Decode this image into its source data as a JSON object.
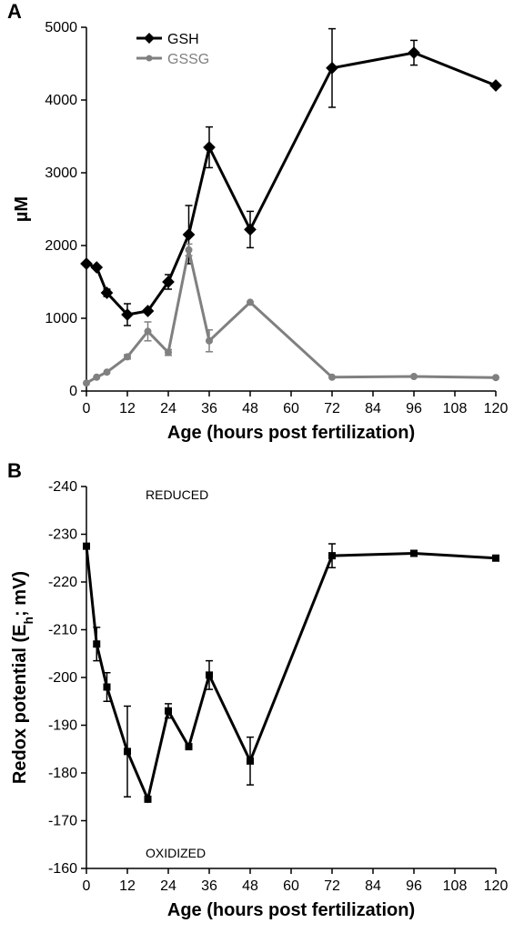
{
  "panelA": {
    "label": "A",
    "label_fontsize": 22,
    "type": "line",
    "xlabel": "Age (hours post fertilization)",
    "ylabel": "µM",
    "label_fontsize_axis": 20,
    "tick_fontsize": 16,
    "xlim": [
      0,
      120
    ],
    "ylim": [
      0,
      5000
    ],
    "xtick_step": 12,
    "ytick_step": 1000,
    "background_color": "#ffffff",
    "axis_color": "#000000",
    "legend": {
      "position": "top-inside",
      "fontsize": 16
    },
    "series": [
      {
        "name": "GSH",
        "color": "#000000",
        "marker": "diamond",
        "marker_size": 8,
        "line_width": 3,
        "x": [
          0,
          3,
          6,
          12,
          18,
          24,
          30,
          36,
          48,
          72,
          96,
          120
        ],
        "y": [
          1750,
          1700,
          1350,
          1050,
          1100,
          1500,
          2150,
          3350,
          2220,
          4440,
          4650,
          4200
        ],
        "err": [
          0,
          0,
          50,
          150,
          0,
          100,
          400,
          280,
          250,
          540,
          170,
          0
        ]
      },
      {
        "name": "GSSG",
        "color": "#808080",
        "marker": "circle",
        "marker_size": 7,
        "line_width": 3,
        "x": [
          0,
          3,
          6,
          12,
          18,
          24,
          30,
          36,
          48,
          72,
          96,
          120
        ],
        "y": [
          110,
          190,
          260,
          470,
          820,
          530,
          1940,
          690,
          1220,
          190,
          200,
          185
        ],
        "err": [
          0,
          0,
          0,
          30,
          130,
          40,
          80,
          150,
          0,
          0,
          0,
          0
        ]
      }
    ]
  },
  "panelB": {
    "label": "B",
    "label_fontsize": 22,
    "type": "line",
    "xlabel": "Age (hours post fertilization)",
    "ylabel": "Redox potential (E",
    "ylabel_sub": "h",
    "ylabel_tail": "; mV)",
    "label_fontsize_axis": 20,
    "tick_fontsize": 16,
    "xlim": [
      0,
      120
    ],
    "ylim_top": -240,
    "ylim_bottom": -160,
    "xtick_step": 12,
    "ytick_step": 10,
    "background_color": "#ffffff",
    "axis_color": "#000000",
    "annotations": {
      "reduced": "REDUCED",
      "oxidized": "OXIDIZED",
      "fontsize": 14
    },
    "series": [
      {
        "name": "Eh",
        "color": "#000000",
        "marker": "square",
        "marker_size": 8,
        "line_width": 3,
        "x": [
          0,
          3,
          6,
          12,
          18,
          24,
          30,
          36,
          48,
          72,
          96,
          120
        ],
        "y": [
          -227.5,
          -207,
          -198,
          -184.5,
          -174.5,
          -193,
          -185.5,
          -200.5,
          -182.5,
          -225.5,
          -226,
          -225
        ],
        "err": [
          0,
          3.5,
          3,
          9.5,
          0,
          1.5,
          0.5,
          3,
          5,
          2.5,
          0.5,
          0
        ]
      }
    ]
  }
}
